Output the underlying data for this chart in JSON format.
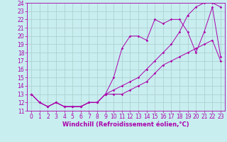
{
  "title": "",
  "xlabel": "Windchill (Refroidissement éolien,°C)",
  "bg_color": "#c8eef0",
  "line_color": "#aa00aa",
  "grid_color": "#aacccc",
  "xlim": [
    -0.5,
    23.5
  ],
  "ylim": [
    11,
    24
  ],
  "xticks": [
    0,
    1,
    2,
    3,
    4,
    5,
    6,
    7,
    8,
    9,
    10,
    11,
    12,
    13,
    14,
    15,
    16,
    17,
    18,
    19,
    20,
    21,
    22,
    23
  ],
  "yticks": [
    11,
    12,
    13,
    14,
    15,
    16,
    17,
    18,
    19,
    20,
    21,
    22,
    23,
    24
  ],
  "line1_x": [
    0,
    1,
    2,
    3,
    4,
    5,
    6,
    7,
    8,
    9,
    10,
    11,
    12,
    13,
    14,
    15,
    16,
    17,
    18,
    19,
    20,
    21,
    22,
    23
  ],
  "line1_y": [
    13,
    12,
    11.5,
    12,
    11.5,
    11.5,
    11.5,
    12,
    12,
    13,
    15,
    18.5,
    20,
    20,
    19.5,
    22,
    21.5,
    22,
    22,
    20.5,
    18,
    20.5,
    23.5,
    17.5
  ],
  "line2_x": [
    0,
    1,
    2,
    3,
    4,
    5,
    6,
    7,
    8,
    9,
    10,
    11,
    12,
    13,
    14,
    15,
    16,
    17,
    18,
    19,
    20,
    21,
    22,
    23
  ],
  "line2_y": [
    13,
    12,
    11.5,
    12,
    11.5,
    11.5,
    11.5,
    12,
    12,
    13,
    13,
    13,
    13.5,
    14,
    14.5,
    15.5,
    16.5,
    17,
    17.5,
    18,
    18.5,
    19,
    19.5,
    17
  ],
  "line3_x": [
    0,
    1,
    2,
    3,
    4,
    5,
    6,
    7,
    8,
    9,
    10,
    11,
    12,
    13,
    14,
    15,
    16,
    17,
    18,
    19,
    20,
    21,
    22,
    23
  ],
  "line3_y": [
    13,
    12,
    11.5,
    12,
    11.5,
    11.5,
    11.5,
    12,
    12,
    13,
    13.5,
    14,
    14.5,
    15,
    16,
    17,
    18,
    19,
    20.5,
    22.5,
    23.5,
    24,
    24,
    23.5
  ],
  "tick_fontsize": 5.5,
  "xlabel_fontsize": 6,
  "lw": 0.7,
  "ms": 1.8
}
